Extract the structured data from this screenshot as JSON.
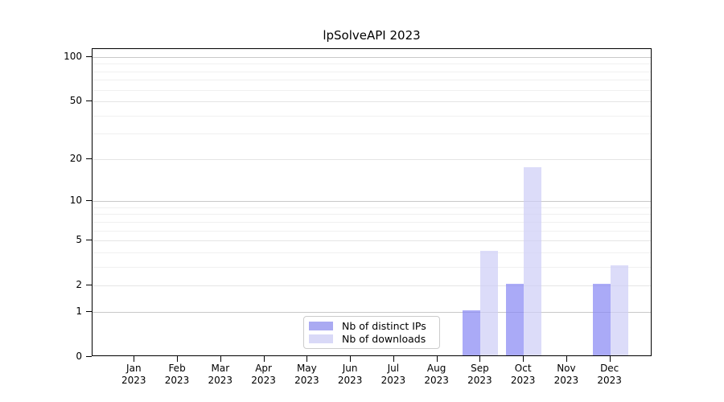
{
  "chart_data": {
    "type": "bar",
    "title": "lpSolveAPI 2023",
    "categories": [
      "Jan",
      "Feb",
      "Mar",
      "Apr",
      "May",
      "Jun",
      "Jul",
      "Aug",
      "Sep",
      "Oct",
      "Nov",
      "Dec"
    ],
    "category_year": "2023",
    "series": [
      {
        "name": "Nb of distinct IPs",
        "color": "rgba(134,134,244,0.7)",
        "legend_color": "#aaaaf2",
        "values": [
          0,
          0,
          0,
          0,
          0,
          0,
          0,
          0,
          1,
          2,
          0,
          2
        ]
      },
      {
        "name": "Nb of downloads",
        "color": "rgba(205,205,246,0.7)",
        "legend_color": "#d9d9f7",
        "values": [
          0,
          0,
          0,
          0,
          0,
          0,
          0,
          0,
          4,
          17,
          0,
          3
        ]
      }
    ],
    "yscale": "log1p",
    "ylim": [
      0,
      113
    ],
    "y_tick_labels": [
      0,
      1,
      2,
      5,
      10,
      20,
      50,
      100
    ],
    "y_major_gridlines": [
      1,
      10,
      100
    ],
    "y_labeled_minor_gridlines": [
      2,
      5,
      20,
      50
    ],
    "y_minor_gridlines": [
      3,
      4,
      6,
      7,
      8,
      9,
      30,
      40,
      60,
      70,
      80,
      90
    ],
    "grid": true,
    "legend_position": "bottom-center",
    "colors": {
      "major_gridline": "#c9c9c9",
      "labeled_gridline": "#e5e5e5",
      "minor_gridline": "#f0f0f0",
      "axis": "#000000",
      "text": "#000000"
    }
  }
}
